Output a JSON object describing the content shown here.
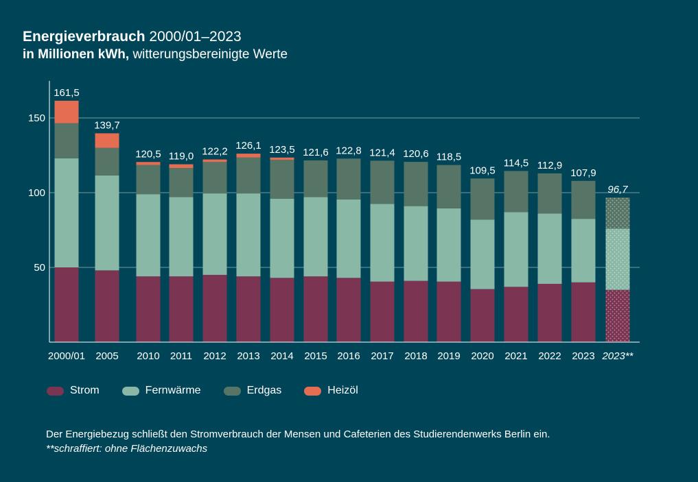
{
  "title": {
    "bold": "Energieverbrauch",
    "regular": "2000/01–2023"
  },
  "subtitle": {
    "bold": "in Millionen kWh,",
    "regular": "witterungsbereinigte Werte"
  },
  "colors": {
    "background": "#004557",
    "strom": "#7b3553",
    "fernwaerme": "#8ab8a6",
    "erdgas": "#567567",
    "heizoel": "#e56e52",
    "text": "#ffffff"
  },
  "chart_data": {
    "type": "bar",
    "stacked": true,
    "categories": [
      "2000/01",
      "2005",
      "2010",
      "2011",
      "2012",
      "2013",
      "2014",
      "2015",
      "2016",
      "2017",
      "2018",
      "2019",
      "2020",
      "2021",
      "2022",
      "2023",
      "2023**"
    ],
    "totals": [
      "161,5",
      "139,7",
      "120,5",
      "119,0",
      "122,2",
      "126,1",
      "123,5",
      "121,6",
      "122,8",
      "121,4",
      "120,6",
      "118,5",
      "109,5",
      "114,5",
      "112,9",
      "107,9",
      "96,7"
    ],
    "series": [
      {
        "name": "Strom",
        "color": "#7b3553",
        "values": [
          50,
          48,
          44,
          44,
          45,
          44,
          43,
          44,
          43,
          40.5,
          41,
          40.5,
          35.5,
          37,
          39,
          40,
          35
        ]
      },
      {
        "name": "Fernwärme",
        "color": "#8ab8a6",
        "values": [
          73,
          63.5,
          55,
          53,
          54.5,
          55.5,
          53,
          53,
          52.5,
          52,
          50,
          49,
          46.5,
          50,
          47,
          42.5,
          41
        ]
      },
      {
        "name": "Erdgas",
        "color": "#567567",
        "values": [
          23.5,
          18.5,
          19.5,
          19.5,
          21,
          24,
          26,
          24.6,
          27.3,
          28.9,
          29.6,
          29,
          27.5,
          27.5,
          26.9,
          25.4,
          20.7
        ]
      },
      {
        "name": "Heizöl",
        "color": "#e56e52",
        "values": [
          15,
          9.7,
          2,
          2.5,
          1.7,
          2.6,
          1.5,
          0,
          0,
          0,
          0,
          0,
          0,
          0,
          0,
          0,
          0
        ]
      }
    ],
    "hatched_categories": [
      "2023**"
    ],
    "ylim": [
      0,
      170
    ],
    "yticks": [
      50,
      100,
      150
    ],
    "grid": true,
    "legend_position": "bottom-left"
  },
  "legend": [
    {
      "label": "Strom",
      "color": "#7b3553"
    },
    {
      "label": "Fernwärme",
      "color": "#8ab8a6"
    },
    {
      "label": "Erdgas",
      "color": "#567567"
    },
    {
      "label": "Heizöl",
      "color": "#e56e52"
    }
  ],
  "footnote": {
    "line1": "Der Energiebezug schließt den Stromverbrauch der Mensen und Cafeterien des Studierendenwerks Berlin ein.",
    "line2": "**schraffiert: ohne Flächenzuwachs"
  }
}
